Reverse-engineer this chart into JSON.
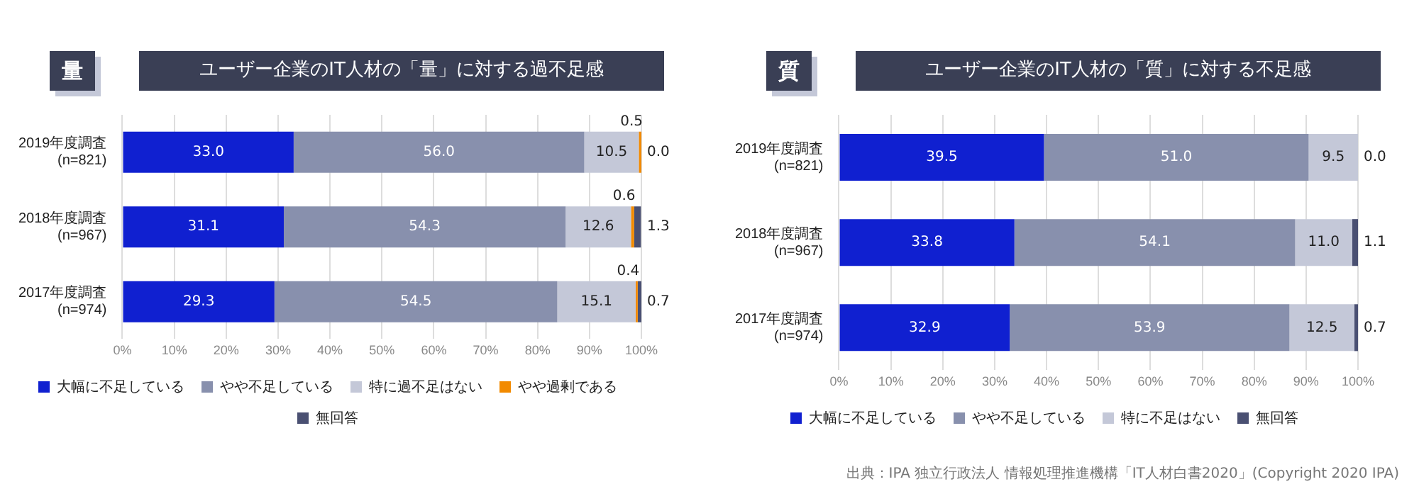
{
  "chart_data": [
    {
      "type": "bar",
      "orientation": "horizontal",
      "stacked": true,
      "title": "ユーザー企業のIT人材の「量」に対する過不足感",
      "subtitle": "量",
      "categories": [
        "2019年度調査\n(n=821)",
        "2018年度調査\n(n=967)",
        "2017年度調査\n(n=974)"
      ],
      "series": [
        {
          "name": "大幅に不足している",
          "color": "#1020d0",
          "values": [
            33.0,
            31.1,
            29.3
          ],
          "value_labels": [
            "33.0",
            "31.1",
            "29.3"
          ]
        },
        {
          "name": "やや不足している",
          "color": "#8890ad",
          "values": [
            56.0,
            54.3,
            54.5
          ],
          "value_labels": [
            "56.0",
            "54.3",
            "54.5"
          ]
        },
        {
          "name": "特に過不足はない",
          "color": "#c4c8d8",
          "values": [
            10.5,
            12.6,
            15.1
          ],
          "value_labels": [
            "10.5",
            "12.6",
            "15.1"
          ]
        },
        {
          "name": "やや過剰である",
          "color": "#f28a00",
          "values": [
            0.5,
            0.6,
            0.4
          ],
          "value_labels": [
            "0.5",
            "0.6",
            "0.4"
          ]
        },
        {
          "name": "無回答",
          "color": "#4a5072",
          "values": [
            0.0,
            1.3,
            0.7
          ],
          "value_labels": [
            "0.0",
            "1.3",
            "0.7"
          ]
        }
      ],
      "xlim": [
        0,
        100
      ],
      "xticks": [
        {
          "value": 0,
          "label": "0%"
        },
        {
          "value": 10,
          "label": "10%"
        },
        {
          "value": 20,
          "label": "20%"
        },
        {
          "value": 30,
          "label": "30%"
        },
        {
          "value": 40,
          "label": "40%"
        },
        {
          "value": 50,
          "label": "50%"
        },
        {
          "value": 60,
          "label": "60%"
        },
        {
          "value": 70,
          "label": "70%"
        },
        {
          "value": 80,
          "label": "80%"
        },
        {
          "value": 90,
          "label": "90%"
        },
        {
          "value": 100,
          "label": "100%"
        }
      ],
      "grid": "x",
      "legend": "bottom"
    },
    {
      "type": "bar",
      "orientation": "horizontal",
      "stacked": true,
      "title": "ユーザー企業のIT人材の「質」に対する不足感",
      "subtitle": "質",
      "categories": [
        "2019年度調査\n(n=821)",
        "2018年度調査\n(n=967)",
        "2017年度調査\n(n=974)"
      ],
      "series": [
        {
          "name": "大幅に不足している",
          "color": "#1020d0",
          "values": [
            39.5,
            33.8,
            32.9
          ],
          "value_labels": [
            "39.5",
            "33.8",
            "32.9"
          ]
        },
        {
          "name": "やや不足している",
          "color": "#8890ad",
          "values": [
            51.0,
            54.1,
            53.9
          ],
          "value_labels": [
            "51.0",
            "54.1",
            "53.9"
          ]
        },
        {
          "name": "特に不足はない",
          "color": "#c4c8d8",
          "values": [
            9.5,
            11.0,
            12.5
          ],
          "value_labels": [
            "9.5",
            "11.0",
            "12.5"
          ]
        },
        {
          "name": "無回答",
          "color": "#4a5072",
          "values": [
            0.0,
            1.1,
            0.7
          ],
          "value_labels": [
            "0.0",
            "1.1",
            "0.7"
          ]
        }
      ],
      "xlim": [
        0,
        100
      ],
      "xticks": [
        {
          "value": 0,
          "label": "0%"
        },
        {
          "value": 10,
          "label": "10%"
        },
        {
          "value": 20,
          "label": "20%"
        },
        {
          "value": 30,
          "label": "30%"
        },
        {
          "value": 40,
          "label": "40%"
        },
        {
          "value": 50,
          "label": "50%"
        },
        {
          "value": 60,
          "label": "60%"
        },
        {
          "value": 70,
          "label": "70%"
        },
        {
          "value": 80,
          "label": "80%"
        },
        {
          "value": 90,
          "label": "90%"
        },
        {
          "value": 100,
          "label": "100%"
        }
      ],
      "grid": "x",
      "legend": "bottom",
      "annotations": [
        "出典：IPA 独立行政法人 情報処理推進機構「IT人材白書2020」(Copyright 2020 IPA)"
      ]
    }
  ]
}
